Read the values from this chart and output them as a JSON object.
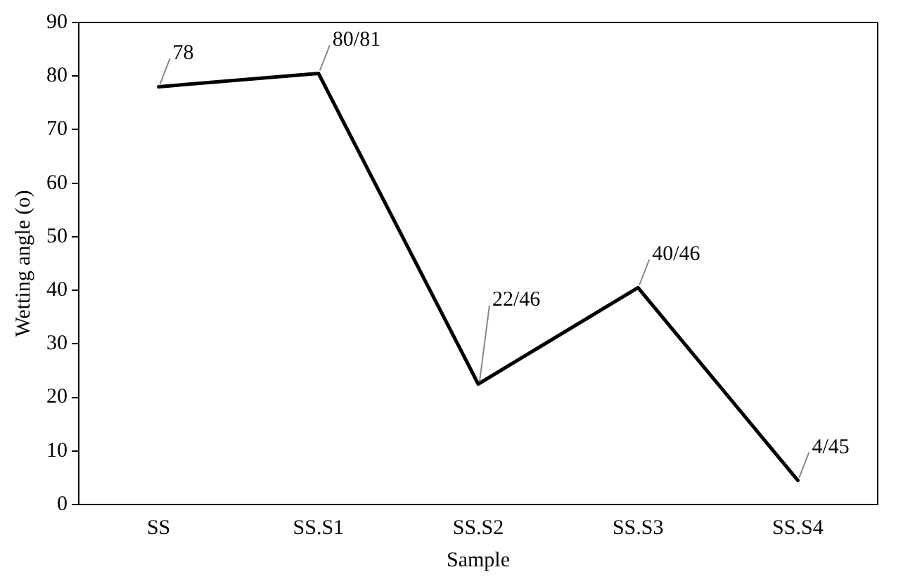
{
  "chart_data": {
    "type": "line",
    "xlabel": "Sample",
    "ylabel": "Wetting angle (o)",
    "categories": [
      "SS",
      "SS.S1",
      "SS.S2",
      "SS.S3",
      "SS.S4"
    ],
    "series": [
      {
        "color": "#000000",
        "values": [
          78,
          80.5,
          22.5,
          40.5,
          4.5
        ],
        "value_labels": [
          "78",
          "80/81",
          "22/46",
          "40/46",
          "4/45"
        ]
      }
    ],
    "ylim": [
      0,
      90
    ],
    "yticks": [
      0,
      10,
      20,
      30,
      40,
      50,
      60,
      70,
      80,
      90
    ],
    "grid": false,
    "legend": false,
    "marker": "none",
    "line_style": "solid"
  }
}
